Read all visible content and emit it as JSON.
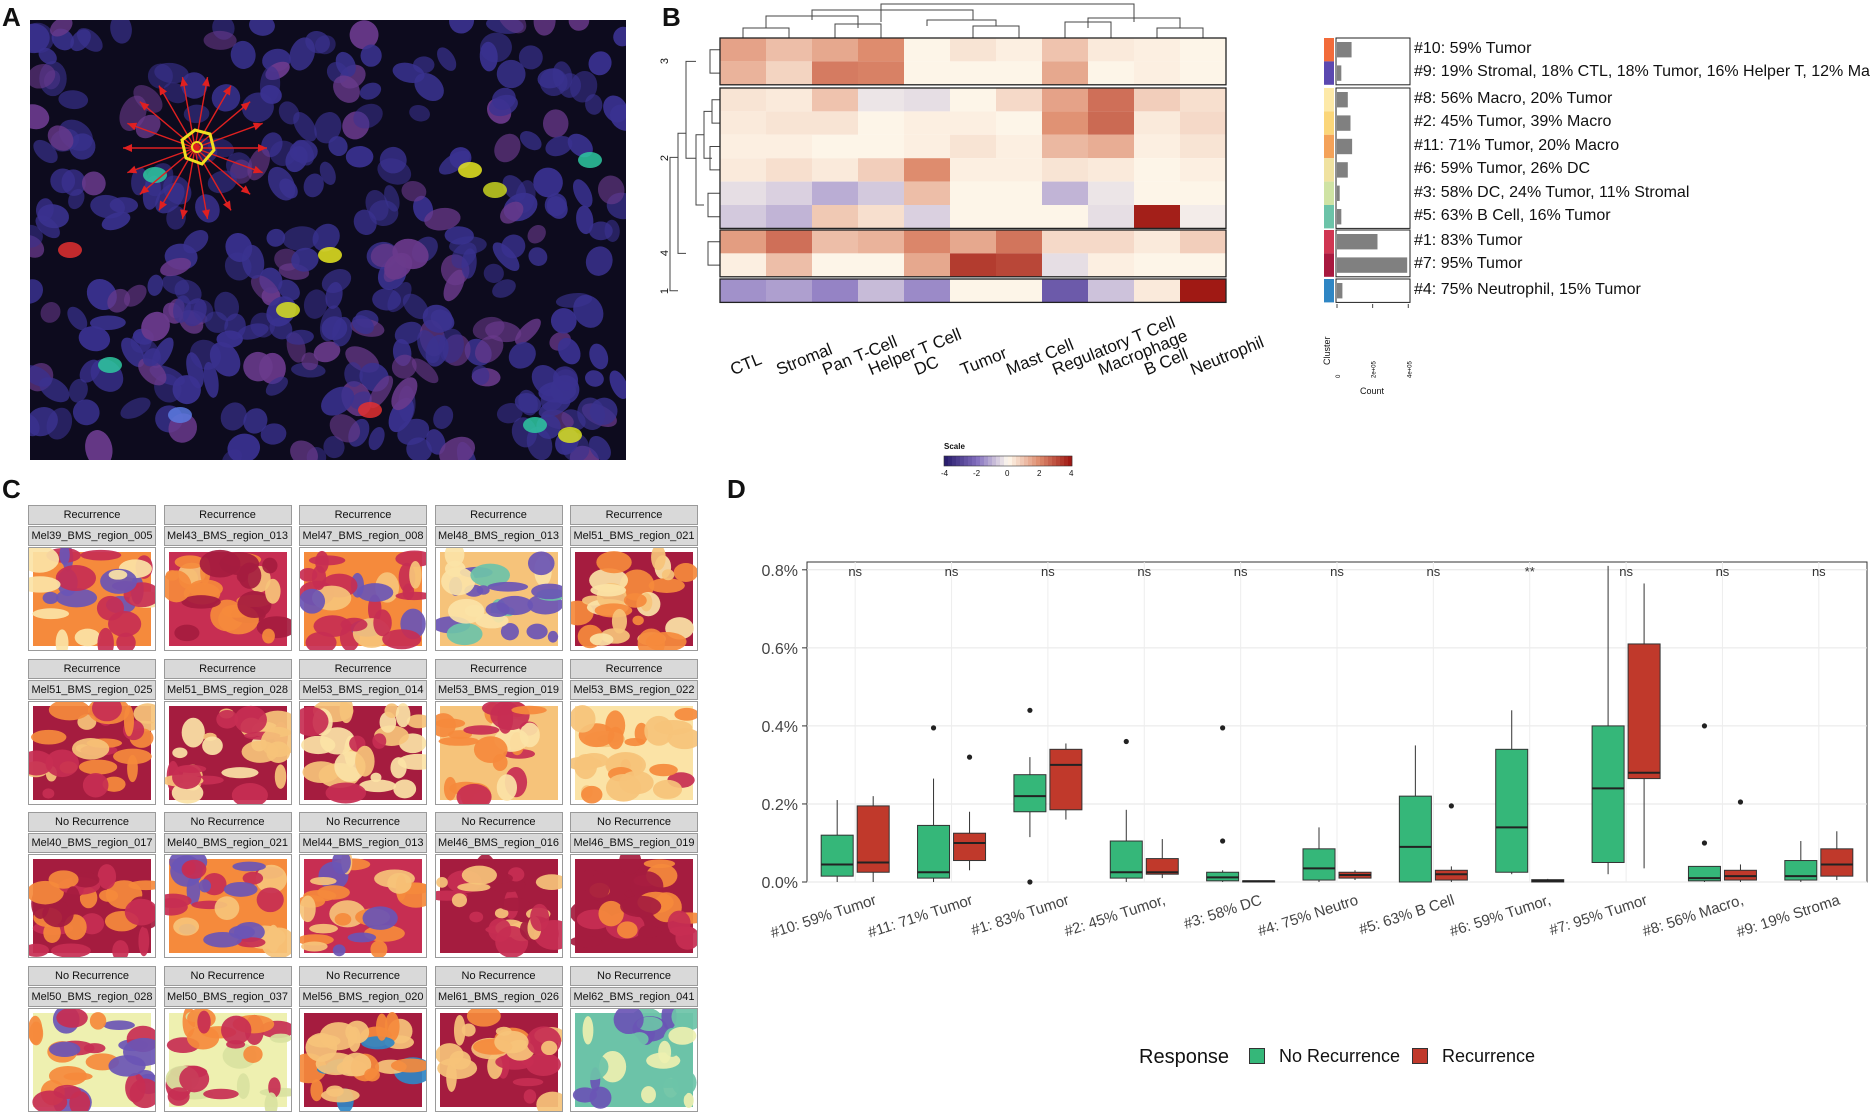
{
  "panels": {
    "a": "A",
    "b": "B",
    "c": "C",
    "d": "D"
  },
  "heatmap": {
    "columns": [
      "CTL",
      "Stromal",
      "Pan T-Cell",
      "Helper T Cell",
      "DC",
      "Tumor",
      "Mast Cell",
      "Regulatory T Cell",
      "Macrophage",
      "B Cell",
      "Neutrophil"
    ],
    "row_groups": [
      {
        "cluster": "3",
        "rows": [
          "#10: 59% Tumor",
          "#9: 19% Stromal, 18% CTL, 18% Tumor, 16% Helper T, 12% Ma"
        ]
      },
      {
        "cluster": "2",
        "rows": [
          "#8: 56% Macro, 20% Tumor",
          "#2: 45% Tumor, 39% Macro",
          "#11: 71% Tumor, 20% Macro",
          "#6: 59% Tumor, 26% DC",
          "#3: 58% DC, 24% Tumor, 11% Stromal",
          "#5: 63% B Cell, 16% Tumor"
        ]
      },
      {
        "cluster": "4",
        "rows": [
          "#1: 83% Tumor",
          "#7: 95% Tumor"
        ]
      },
      {
        "cluster": "1",
        "rows": [
          "#4: 75% Neutrophil, 15% Tumor"
        ]
      }
    ],
    "values": [
      [
        1.6,
        1.1,
        1.5,
        2.0,
        0.1,
        0.4,
        0.2,
        1.0,
        0.3,
        0.2,
        0.1
      ],
      [
        1.3,
        0.7,
        2.3,
        2.2,
        0.1,
        0.1,
        0.1,
        1.5,
        0.1,
        0.2,
        0.1
      ],
      [
        0.4,
        0.3,
        1.0,
        -0.3,
        -0.4,
        0.1,
        0.6,
        1.6,
        2.5,
        0.8,
        0.5
      ],
      [
        0.3,
        0.4,
        0.4,
        0.1,
        0.2,
        0.2,
        0.1,
        1.9,
        2.6,
        0.3,
        0.6
      ],
      [
        0.2,
        0.2,
        0.1,
        0.1,
        0.2,
        0.4,
        0.2,
        1.2,
        1.4,
        0.2,
        0.4
      ],
      [
        0.3,
        0.5,
        0.3,
        0.8,
        2.0,
        0.2,
        0.2,
        0.4,
        0.3,
        0.1,
        0.2
      ],
      [
        -0.4,
        -0.6,
        -1.1,
        -0.7,
        1.1,
        0.1,
        0.1,
        -1.0,
        -0.3,
        0.1,
        0.1
      ],
      [
        -0.7,
        -1.0,
        0.9,
        0.5,
        -0.6,
        0.1,
        0.1,
        0.1,
        -0.4,
        3.9,
        -0.2
      ],
      [
        1.7,
        2.5,
        1.1,
        1.3,
        2.1,
        1.5,
        2.4,
        0.6,
        0.6,
        0.3,
        0.8
      ],
      [
        0.2,
        1.1,
        0.1,
        0.1,
        1.5,
        3.4,
        3.2,
        -0.4,
        0.2,
        0.1,
        0.1
      ],
      [
        -1.5,
        -1.3,
        -1.7,
        -0.9,
        -1.6,
        0.1,
        0.1,
        -2.5,
        -0.8,
        0.3,
        4.2
      ]
    ],
    "cluster_colors": [
      "#f26b3a",
      "#5b48b0",
      "#fde9a8",
      "#fbd67a",
      "#f4a259",
      "#f0e2a0",
      "#cfe3a4",
      "#6cc3a8",
      "#d03552",
      "#a8193f",
      "#2f86c4"
    ],
    "counts": [
      0.27,
      0.08,
      0.2,
      0.25,
      0.28,
      0.2,
      0.05,
      0.08,
      0.75,
      1.3,
      0.1
    ],
    "legend": {
      "title": "Scale",
      "ticks": [
        "-4",
        "-2",
        "0",
        "2",
        "4"
      ]
    },
    "axis": {
      "cluster_label": "Cluster",
      "count_label": "Count",
      "count_ticks": [
        "0",
        "2e+05",
        "4e+05"
      ]
    }
  },
  "tiles": [
    {
      "response": "Recurrence",
      "sample": "Mel39_BMS_region_005",
      "palette": [
        "#f58a3c",
        "#6a55b5",
        "#c72e52",
        "#fbe3a6"
      ]
    },
    {
      "response": "Recurrence",
      "sample": "Mel43_BMS_region_013",
      "palette": [
        "#c72e52",
        "#f58a3c",
        "#f6c37a",
        "#a51c3f"
      ]
    },
    {
      "response": "Recurrence",
      "sample": "Mel47_BMS_region_008",
      "palette": [
        "#f58a3c",
        "#c72e52",
        "#f6c37a",
        "#6a55b5"
      ]
    },
    {
      "response": "Recurrence",
      "sample": "Mel48_BMS_region_013",
      "palette": [
        "#f6c37a",
        "#fbe3a6",
        "#6a55b5",
        "#6cc3a8"
      ]
    },
    {
      "response": "Recurrence",
      "sample": "Mel51_BMS_region_021",
      "palette": [
        "#a51c3f",
        "#fbe3a6",
        "#f6c37a",
        "#f58a3c"
      ]
    },
    {
      "response": "Recurrence",
      "sample": "Mel51_BMS_region_025",
      "palette": [
        "#a51c3f",
        "#c72e52",
        "#f6c37a",
        "#f58a3c"
      ]
    },
    {
      "response": "Recurrence",
      "sample": "Mel51_BMS_region_028",
      "palette": [
        "#a51c3f",
        "#f6c37a",
        "#c72e52",
        "#fbe3a6"
      ]
    },
    {
      "response": "Recurrence",
      "sample": "Mel53_BMS_region_014",
      "palette": [
        "#a51c3f",
        "#f6c37a",
        "#c72e52",
        "#fbe3a6"
      ]
    },
    {
      "response": "Recurrence",
      "sample": "Mel53_BMS_region_019",
      "palette": [
        "#f6c37a",
        "#f58a3c",
        "#fbe3a6",
        "#c72e52"
      ]
    },
    {
      "response": "Recurrence",
      "sample": "Mel53_BMS_region_022",
      "palette": [
        "#fbe3a6",
        "#f6c37a",
        "#f58a3c",
        "#c72e52"
      ]
    },
    {
      "response": "No Recurrence",
      "sample": "Mel40_BMS_region_017",
      "palette": [
        "#a51c3f",
        "#c72e52",
        "#f58a3c",
        "#a51c3f"
      ]
    },
    {
      "response": "No Recurrence",
      "sample": "Mel40_BMS_region_021",
      "palette": [
        "#f58a3c",
        "#f6c37a",
        "#6a55b5",
        "#c72e52"
      ]
    },
    {
      "response": "No Recurrence",
      "sample": "Mel44_BMS_region_013",
      "palette": [
        "#c72e52",
        "#f58a3c",
        "#6a55b5",
        "#f6c37a"
      ]
    },
    {
      "response": "No Recurrence",
      "sample": "Mel46_BMS_region_016",
      "palette": [
        "#a51c3f",
        "#c72e52",
        "#a51c3f",
        "#f6c37a"
      ]
    },
    {
      "response": "No Recurrence",
      "sample": "Mel46_BMS_region_019",
      "palette": [
        "#a51c3f",
        "#c72e52",
        "#a51c3f",
        "#f58a3c"
      ]
    },
    {
      "response": "No Recurrence",
      "sample": "Mel50_BMS_region_028",
      "palette": [
        "#eef0b0",
        "#f58a3c",
        "#6a55b5",
        "#c72e52"
      ]
    },
    {
      "response": "No Recurrence",
      "sample": "Mel50_BMS_region_037",
      "palette": [
        "#eef0b0",
        "#c72e52",
        "#f58a3c",
        "#d9e2a0"
      ]
    },
    {
      "response": "No Recurrence",
      "sample": "Mel56_BMS_region_020",
      "palette": [
        "#a51c3f",
        "#f58a3c",
        "#f6c37a",
        "#2f86c4"
      ]
    },
    {
      "response": "No Recurrence",
      "sample": "Mel61_BMS_region_026",
      "palette": [
        "#a51c3f",
        "#c72e52",
        "#f58a3c",
        "#f6c37a"
      ]
    },
    {
      "response": "No Recurrence",
      "sample": "Mel62_BMS_region_041",
      "palette": [
        "#6cc3a8",
        "#eef0b0",
        "#6cc3a8",
        "#6a55b5"
      ]
    }
  ],
  "chart_data": {
    "type": "box",
    "categories": [
      "#10: 59% Tumor",
      "#11: 71% Tumor",
      "#1: 83% Tumor",
      "#2: 45% Tumor,",
      "#3: 58% DC",
      "#4: 75% Neutro",
      "#5: 63% B Cell",
      "#6: 59% Tumor,",
      "#7: 95% Tumor",
      "#8: 56% Macro,",
      "#9: 19% Stroma"
    ],
    "significance": [
      "ns",
      "ns",
      "ns",
      "ns",
      "ns",
      "ns",
      "ns",
      "**",
      "ns",
      "ns",
      "ns"
    ],
    "ylim": [
      0,
      0.82
    ],
    "y_ticks": [
      0.0,
      0.2,
      0.4,
      0.6,
      0.8
    ],
    "y_tick_labels": [
      "0.0%",
      "0.2%",
      "0.4%",
      "0.6%",
      "0.8%"
    ],
    "series": [
      {
        "name": "No Recurrence",
        "color": "#35b779",
        "boxes": [
          {
            "min": 0.0,
            "q1": 0.015,
            "median": 0.045,
            "q3": 0.12,
            "max": 0.21,
            "outliers": []
          },
          {
            "min": 0.0,
            "q1": 0.01,
            "median": 0.025,
            "q3": 0.145,
            "max": 0.265,
            "outliers": [
              0.395
            ]
          },
          {
            "min": 0.115,
            "q1": 0.18,
            "median": 0.22,
            "q3": 0.275,
            "max": 0.32,
            "outliers": [
              0.44,
              0.0
            ]
          },
          {
            "min": 0.0,
            "q1": 0.01,
            "median": 0.025,
            "q3": 0.105,
            "max": 0.185,
            "outliers": [
              0.36
            ]
          },
          {
            "min": 0.0,
            "q1": 0.003,
            "median": 0.012,
            "q3": 0.025,
            "max": 0.03,
            "outliers": [
              0.395,
              0.105
            ]
          },
          {
            "min": 0.0,
            "q1": 0.005,
            "median": 0.035,
            "q3": 0.085,
            "max": 0.14,
            "outliers": []
          },
          {
            "min": 0.0,
            "q1": 0.0,
            "median": 0.09,
            "q3": 0.22,
            "max": 0.35,
            "outliers": []
          },
          {
            "min": 0.02,
            "q1": 0.025,
            "median": 0.14,
            "q3": 0.34,
            "max": 0.44,
            "outliers": []
          },
          {
            "min": 0.02,
            "q1": 0.05,
            "median": 0.24,
            "q3": 0.4,
            "max": 0.81,
            "outliers": []
          },
          {
            "min": 0.0,
            "q1": 0.003,
            "median": 0.01,
            "q3": 0.04,
            "max": 0.04,
            "outliers": [
              0.4,
              0.1
            ]
          },
          {
            "min": 0.0,
            "q1": 0.005,
            "median": 0.015,
            "q3": 0.055,
            "max": 0.105,
            "outliers": []
          }
        ]
      },
      {
        "name": "Recurrence",
        "color": "#c0392b",
        "boxes": [
          {
            "min": 0.0,
            "q1": 0.025,
            "median": 0.05,
            "q3": 0.195,
            "max": 0.22,
            "outliers": []
          },
          {
            "min": 0.03,
            "q1": 0.055,
            "median": 0.1,
            "q3": 0.125,
            "max": 0.18,
            "outliers": [
              0.32
            ]
          },
          {
            "min": 0.16,
            "q1": 0.185,
            "median": 0.3,
            "q3": 0.34,
            "max": 0.355,
            "outliers": []
          },
          {
            "min": 0.01,
            "q1": 0.02,
            "median": 0.025,
            "q3": 0.06,
            "max": 0.11,
            "outliers": []
          },
          {
            "min": 0.0,
            "q1": 0.0,
            "median": 0.002,
            "q3": 0.003,
            "max": 0.004,
            "outliers": []
          },
          {
            "min": 0.005,
            "q1": 0.01,
            "median": 0.018,
            "q3": 0.025,
            "max": 0.03,
            "outliers": []
          },
          {
            "min": 0.0,
            "q1": 0.005,
            "median": 0.02,
            "q3": 0.03,
            "max": 0.04,
            "outliers": [
              0.195
            ]
          },
          {
            "min": 0.0,
            "q1": 0.0,
            "median": 0.003,
            "q3": 0.006,
            "max": 0.008,
            "outliers": []
          },
          {
            "min": 0.035,
            "q1": 0.265,
            "median": 0.28,
            "q3": 0.61,
            "max": 0.765,
            "outliers": []
          },
          {
            "min": 0.0,
            "q1": 0.005,
            "median": 0.015,
            "q3": 0.03,
            "max": 0.045,
            "outliers": [
              0.205
            ]
          },
          {
            "min": 0.005,
            "q1": 0.015,
            "median": 0.045,
            "q3": 0.085,
            "max": 0.13,
            "outliers": []
          }
        ]
      }
    ],
    "legend_title": "Response"
  }
}
